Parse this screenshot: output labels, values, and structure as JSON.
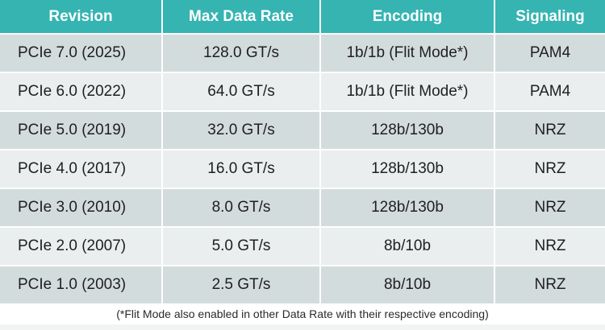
{
  "table": {
    "headers": [
      "Revision",
      "Max Data Rate",
      "Encoding",
      "Signaling"
    ],
    "rows": [
      [
        "PCIe 7.0 (2025)",
        "128.0 GT/s",
        "1b/1b (Flit Mode*)",
        "PAM4"
      ],
      [
        "PCIe 6.0 (2022)",
        "64.0 GT/s",
        "1b/1b (Flit Mode*)",
        "PAM4"
      ],
      [
        "PCIe 5.0 (2019)",
        "32.0 GT/s",
        "128b/130b",
        "NRZ"
      ],
      [
        "PCIe 4.0 (2017)",
        "16.0 GT/s",
        "128b/130b",
        "NRZ"
      ],
      [
        "PCIe 3.0 (2010)",
        "8.0 GT/s",
        "128b/130b",
        "NRZ"
      ],
      [
        "PCIe 2.0 (2007)",
        "5.0 GT/s",
        "8b/10b",
        "NRZ"
      ],
      [
        "PCIe 1.0 (2003)",
        "2.5 GT/s",
        "8b/10b",
        "NRZ"
      ]
    ]
  },
  "footnote": "(*Flit Mode also enabled in other Data Rate with their respective encoding)",
  "colors": {
    "header_bg": "#35b4b2",
    "row_odd_bg": "#d3dcdc",
    "row_even_bg": "#eaeeee"
  }
}
